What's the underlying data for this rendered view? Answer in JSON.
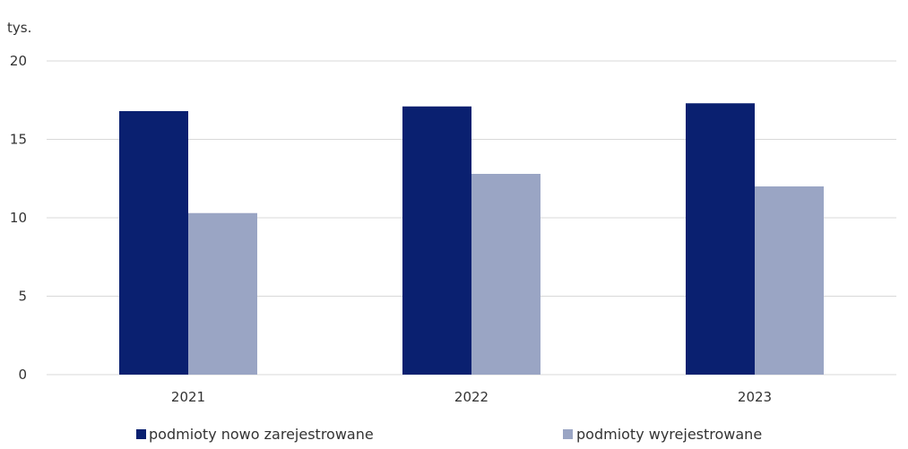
{
  "chart_data": {
    "type": "bar",
    "ylabel": "tys.",
    "categories": [
      "2021",
      "2022",
      "2023"
    ],
    "series": [
      {
        "name": "podmioty nowo zarejestrowane",
        "values": [
          16.8,
          17.1,
          17.3
        ],
        "color": "#0a2070"
      },
      {
        "name": "podmioty wyrejestrowane",
        "values": [
          10.3,
          12.8,
          12.0
        ],
        "color": "#9aa5c4"
      }
    ],
    "ylim": [
      0,
      20
    ],
    "yticks": [
      "0",
      "5",
      "10",
      "15",
      "20"
    ],
    "grid": true,
    "legend_position": "bottom"
  }
}
